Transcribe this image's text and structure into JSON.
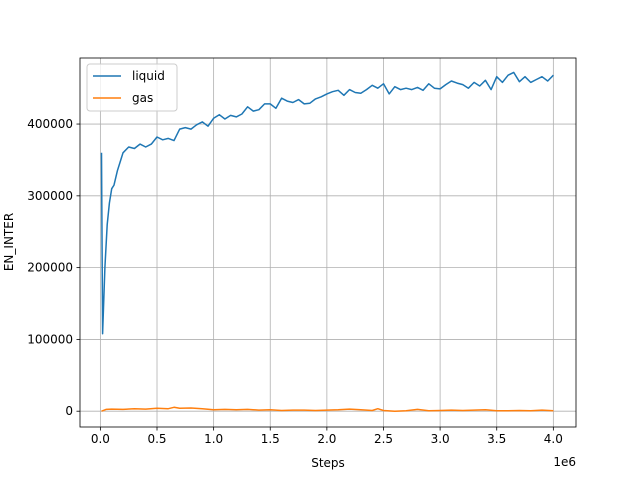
{
  "chart_data": {
    "type": "line",
    "title": "",
    "xlabel": "Steps",
    "ylabel": "EN_INTER",
    "x_offset_text": "1e6",
    "xlim": [
      -0.18,
      4.2
    ],
    "ylim": [
      -22000,
      492000
    ],
    "x_ticks": [
      0.0,
      0.5,
      1.0,
      1.5,
      2.0,
      2.5,
      3.0,
      3.5,
      4.0
    ],
    "x_tick_labels": [
      "0.0",
      "0.5",
      "1.0",
      "1.5",
      "2.0",
      "2.5",
      "3.0",
      "3.5",
      "4.0"
    ],
    "y_ticks": [
      0,
      100000,
      200000,
      300000,
      400000
    ],
    "y_tick_labels": [
      "0",
      "100000",
      "200000",
      "300000",
      "400000"
    ],
    "grid": true,
    "legend_position": "top-left",
    "series": [
      {
        "name": "liquid",
        "color": "#1f77b4",
        "x": [
          0.01,
          0.02,
          0.04,
          0.06,
          0.08,
          0.1,
          0.12,
          0.15,
          0.18,
          0.2,
          0.25,
          0.3,
          0.35,
          0.4,
          0.45,
          0.5,
          0.55,
          0.6,
          0.65,
          0.7,
          0.75,
          0.8,
          0.85,
          0.9,
          0.95,
          1.0,
          1.05,
          1.1,
          1.15,
          1.2,
          1.25,
          1.3,
          1.35,
          1.4,
          1.45,
          1.5,
          1.55,
          1.6,
          1.65,
          1.7,
          1.75,
          1.8,
          1.85,
          1.9,
          1.95,
          2.0,
          2.05,
          2.1,
          2.15,
          2.2,
          2.25,
          2.3,
          2.35,
          2.4,
          2.45,
          2.5,
          2.55,
          2.6,
          2.65,
          2.7,
          2.75,
          2.8,
          2.85,
          2.9,
          2.95,
          3.0,
          3.05,
          3.1,
          3.15,
          3.2,
          3.25,
          3.3,
          3.35,
          3.4,
          3.45,
          3.5,
          3.55,
          3.6,
          3.65,
          3.7,
          3.75,
          3.8,
          3.85,
          3.9,
          3.95,
          4.0
        ],
        "y": [
          360000,
          108000,
          200000,
          260000,
          290000,
          310000,
          315000,
          335000,
          350000,
          360000,
          368000,
          366000,
          372000,
          368000,
          372000,
          382000,
          378000,
          380000,
          377000,
          393000,
          395000,
          393000,
          399000,
          403000,
          397000,
          408000,
          413000,
          407000,
          412000,
          410000,
          414000,
          424000,
          418000,
          420000,
          428000,
          428000,
          422000,
          436000,
          432000,
          430000,
          434000,
          428000,
          429000,
          435000,
          438000,
          442000,
          445000,
          447000,
          440000,
          448000,
          444000,
          443000,
          448000,
          454000,
          450000,
          456000,
          442000,
          452000,
          448000,
          450000,
          448000,
          451000,
          447000,
          456000,
          450000,
          449000,
          455000,
          460000,
          457000,
          455000,
          450000,
          458000,
          453000,
          461000,
          448000,
          466000,
          458000,
          468000,
          472000,
          459000,
          466000,
          458000,
          462000,
          466000,
          460000,
          468000
        ]
      },
      {
        "name": "gas",
        "color": "#ff7f0e",
        "x": [
          0.01,
          0.05,
          0.1,
          0.2,
          0.3,
          0.4,
          0.5,
          0.6,
          0.65,
          0.7,
          0.8,
          0.9,
          1.0,
          1.1,
          1.2,
          1.3,
          1.4,
          1.5,
          1.6,
          1.7,
          1.8,
          1.9,
          2.0,
          2.1,
          2.2,
          2.3,
          2.4,
          2.45,
          2.5,
          2.6,
          2.7,
          2.8,
          2.9,
          3.0,
          3.1,
          3.2,
          3.3,
          3.4,
          3.5,
          3.6,
          3.7,
          3.8,
          3.9,
          4.0
        ],
        "y": [
          0,
          2500,
          3000,
          2500,
          3500,
          3000,
          4000,
          3500,
          5500,
          4000,
          4500,
          3500,
          2000,
          2500,
          2000,
          2500,
          1500,
          2000,
          1000,
          1500,
          1500,
          1000,
          1500,
          2000,
          3000,
          2000,
          1000,
          3500,
          1000,
          0,
          500,
          2500,
          500,
          1000,
          1500,
          1000,
          1500,
          2000,
          500,
          500,
          1000,
          500,
          1500,
          500
        ]
      }
    ]
  }
}
